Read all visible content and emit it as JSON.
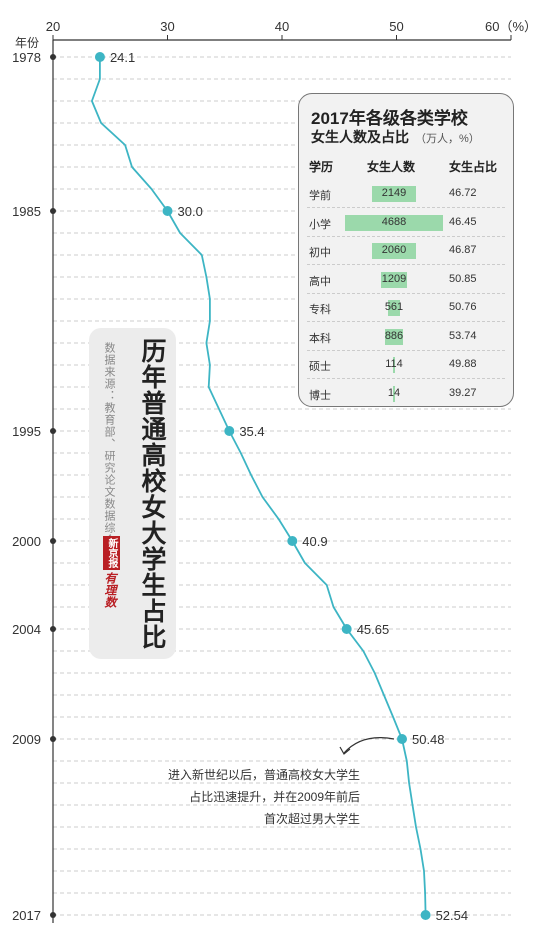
{
  "chart_data": {
    "type": "line",
    "title": "历年普通高校女大学生占比",
    "source": "数据来源：教育部、研究论文数据综合",
    "logo_text1": "新京报",
    "logo_text2": "有理数",
    "x_axis_label": "年份",
    "x_ticks": [
      "20",
      "30",
      "40",
      "50",
      "60（%）"
    ],
    "xlim": [
      20,
      60
    ],
    "ylim": [
      1978,
      2017
    ],
    "y_ticks": [
      "1978",
      "1985",
      "1995",
      "2000",
      "2004",
      "2009",
      "2017"
    ],
    "series": [
      {
        "points": [
          {
            "year": 1978,
            "value": 24.1
          },
          {
            "year": 1979,
            "value": 24.1
          },
          {
            "year": 1980,
            "value": 23.4
          },
          {
            "year": 1981,
            "value": 24.2
          },
          {
            "year": 1982,
            "value": 26.3
          },
          {
            "year": 1983,
            "value": 26.9
          },
          {
            "year": 1984,
            "value": 28.6
          },
          {
            "year": 1985,
            "value": 30.0
          },
          {
            "year": 1986,
            "value": 31.1
          },
          {
            "year": 1987,
            "value": 33.0
          },
          {
            "year": 1988,
            "value": 33.4
          },
          {
            "year": 1989,
            "value": 33.7
          },
          {
            "year": 1990,
            "value": 33.7
          },
          {
            "year": 1991,
            "value": 33.4
          },
          {
            "year": 1992,
            "value": 33.7
          },
          {
            "year": 1993,
            "value": 33.6
          },
          {
            "year": 1994,
            "value": 34.5
          },
          {
            "year": 1995,
            "value": 35.4
          },
          {
            "year": 1996,
            "value": 36.4
          },
          {
            "year": 1997,
            "value": 37.3
          },
          {
            "year": 1998,
            "value": 38.3
          },
          {
            "year": 1999,
            "value": 39.7
          },
          {
            "year": 2000,
            "value": 40.9
          },
          {
            "year": 2001,
            "value": 42.0
          },
          {
            "year": 2002,
            "value": 43.9
          },
          {
            "year": 2003,
            "value": 44.5
          },
          {
            "year": 2004,
            "value": 45.65
          },
          {
            "year": 2005,
            "value": 47.1
          },
          {
            "year": 2006,
            "value": 48.1
          },
          {
            "year": 2007,
            "value": 48.9
          },
          {
            "year": 2008,
            "value": 49.7
          },
          {
            "year": 2009,
            "value": 50.48
          },
          {
            "year": 2010,
            "value": 50.9
          },
          {
            "year": 2011,
            "value": 51.1
          },
          {
            "year": 2012,
            "value": 51.4
          },
          {
            "year": 2013,
            "value": 51.7
          },
          {
            "year": 2014,
            "value": 52.1
          },
          {
            "year": 2015,
            "value": 52.4
          },
          {
            "year": 2016,
            "value": 52.5
          },
          {
            "year": 2017,
            "value": 52.54
          }
        ]
      }
    ],
    "labeled_points": [
      {
        "year": 1978,
        "value": 24.1,
        "label": "24.1"
      },
      {
        "year": 1985,
        "value": 30.0,
        "label": "30.0"
      },
      {
        "year": 1995,
        "value": 35.4,
        "label": "35.4"
      },
      {
        "year": 2000,
        "value": 40.9,
        "label": "40.9"
      },
      {
        "year": 2004,
        "value": 45.65,
        "label": "45.65"
      },
      {
        "year": 2009,
        "value": 50.48,
        "label": "50.48"
      },
      {
        "year": 2017,
        "value": 52.54,
        "label": "52.54"
      }
    ],
    "annotation": [
      "进入新世纪以后，普通高校女大学生",
      "占比迅速提升，并在2009年前后",
      "首次超过男大学生"
    ],
    "grid": "horizontal dashed, one per year",
    "colors": {
      "line": "#3db5c4",
      "marker": "#3db5c4",
      "bar": "#9bd9ab",
      "axis": "#333333",
      "grid": "#cccccc"
    }
  },
  "table": {
    "title": "2017年各级各类学校",
    "subtitle": "女生人数及占比",
    "unit": "（万人，%）",
    "headers": [
      "学历",
      "女生人数",
      "女生占比"
    ],
    "rows": [
      {
        "level": "学前",
        "count": 2149,
        "count_label": "2149",
        "pct": "46.72"
      },
      {
        "level": "小学",
        "count": 4688,
        "count_label": "4688",
        "pct": "46.45"
      },
      {
        "level": "初中",
        "count": 2060,
        "count_label": "2060",
        "pct": "46.87"
      },
      {
        "level": "高中",
        "count": 1209,
        "count_label": "1209",
        "pct": "50.85"
      },
      {
        "level": "专科",
        "count": 561,
        "count_label": "561",
        "pct": "50.76"
      },
      {
        "level": "本科",
        "count": 886,
        "count_label": "886",
        "pct": "53.74"
      },
      {
        "level": "硕士",
        "count": 114,
        "count_label": "114",
        "pct": "49.88"
      },
      {
        "level": "博士",
        "count": 14,
        "count_label": "14",
        "pct": "39.27"
      }
    ]
  }
}
